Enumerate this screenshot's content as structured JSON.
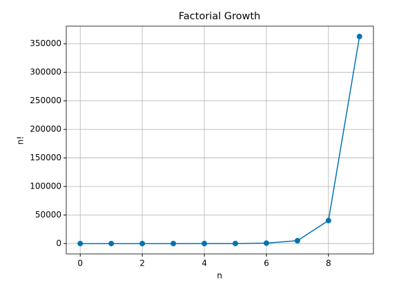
{
  "chart_data": {
    "type": "line",
    "title": "Factorial Growth",
    "xlabel": "n",
    "ylabel": "n!",
    "x": [
      0,
      1,
      2,
      3,
      4,
      5,
      6,
      7,
      8,
      9
    ],
    "series": [
      {
        "color": "#0173b2",
        "values": [
          1,
          1,
          2,
          6,
          24,
          120,
          720,
          5040,
          40320,
          362880
        ]
      }
    ],
    "xlim": [
      -0.45,
      9.45
    ],
    "ylim": [
      -18143,
      381023
    ],
    "xticks": [
      0,
      2,
      4,
      6,
      8
    ],
    "yticks": [
      0,
      50000,
      100000,
      150000,
      200000,
      250000,
      300000,
      350000
    ],
    "grid": true,
    "marker": "circle"
  }
}
